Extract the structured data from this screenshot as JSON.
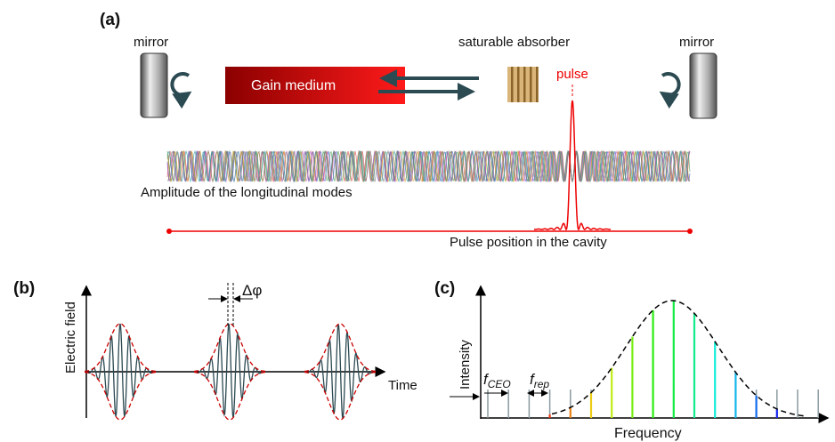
{
  "panel_a": {
    "label": "(a)",
    "left_mirror": "mirror",
    "absorber": "saturable absorber",
    "right_mirror": "mirror",
    "pulse": "pulse",
    "gain": "Gain medium",
    "modes": "Amplitude of the longitudinal modes",
    "position": "Pulse position in the cavity"
  },
  "panel_b": {
    "label": "(b)",
    "y_axis": "Electric field",
    "phase": "Δφ",
    "x_axis": "Time"
  },
  "panel_c": {
    "label": "(c)",
    "y_axis": "Intensity",
    "f_ceo": {
      "symbol": "f",
      "subscript": "CEO"
    },
    "f_rep": {
      "symbol": "f",
      "subscript": "rep"
    },
    "x_axis": "Frequency"
  }
}
